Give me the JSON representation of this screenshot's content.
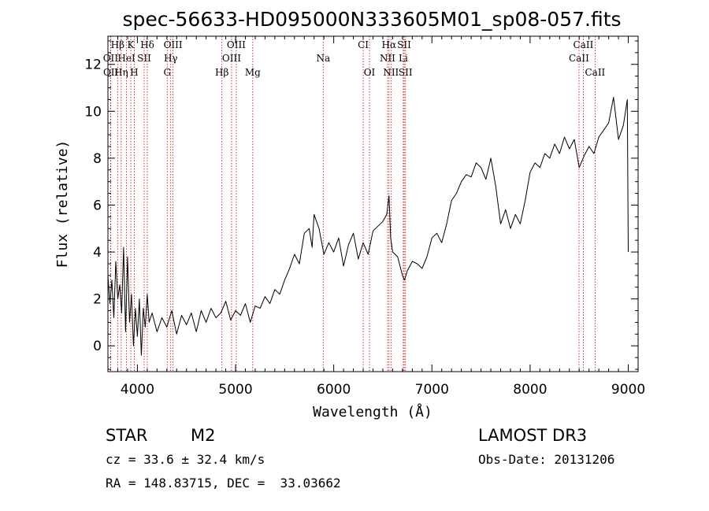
{
  "chart_data": {
    "type": "line",
    "title": "spec-56633-HD095000N333605M01_sp08-057.fits",
    "xlabel": "Wavelength (Å)",
    "ylabel": "Flux (relative)",
    "xlim": [
      3700,
      9100
    ],
    "ylim": [
      -1.1,
      13.2
    ],
    "x_ticks": [
      4000,
      5000,
      6000,
      7000,
      8000,
      9000
    ],
    "y_ticks": [
      0,
      2,
      4,
      6,
      8,
      10,
      12
    ],
    "series": [
      {
        "name": "flux",
        "x": [
          3700,
          3720,
          3740,
          3760,
          3780,
          3800,
          3820,
          3840,
          3860,
          3880,
          3900,
          3920,
          3940,
          3960,
          3980,
          4000,
          4020,
          4040,
          4060,
          4080,
          4100,
          4120,
          4150,
          4200,
          4250,
          4300,
          4350,
          4400,
          4450,
          4500,
          4550,
          4600,
          4650,
          4700,
          4750,
          4800,
          4850,
          4900,
          4950,
          5000,
          5050,
          5100,
          5150,
          5200,
          5250,
          5300,
          5350,
          5400,
          5450,
          5500,
          5550,
          5600,
          5650,
          5700,
          5750,
          5780,
          5800,
          5850,
          5900,
          5950,
          6000,
          6050,
          6100,
          6150,
          6200,
          6250,
          6300,
          6350,
          6400,
          6450,
          6500,
          6540,
          6563,
          6580,
          6600,
          6650,
          6700,
          6720,
          6750,
          6800,
          6850,
          6900,
          6950,
          7000,
          7050,
          7100,
          7150,
          7200,
          7250,
          7300,
          7350,
          7400,
          7450,
          7500,
          7550,
          7600,
          7650,
          7700,
          7750,
          7800,
          7850,
          7900,
          7950,
          8000,
          8050,
          8100,
          8150,
          8200,
          8250,
          8300,
          8350,
          8400,
          8450,
          8500,
          8550,
          8600,
          8650,
          8700,
          8750,
          8800,
          8850,
          8900,
          8950,
          8990,
          9000
        ],
        "y": [
          3.0,
          1.8,
          2.8,
          1.2,
          3.6,
          2.0,
          2.6,
          1.4,
          4.2,
          0.6,
          3.8,
          1.0,
          2.2,
          0.0,
          1.6,
          0.4,
          2.0,
          -0.4,
          1.6,
          0.8,
          2.2,
          1.0,
          1.4,
          0.6,
          1.2,
          0.8,
          1.5,
          0.5,
          1.3,
          0.9,
          1.4,
          0.6,
          1.5,
          1.0,
          1.6,
          1.2,
          1.4,
          1.9,
          1.1,
          1.5,
          1.3,
          1.8,
          1.0,
          1.7,
          1.6,
          2.1,
          1.8,
          2.4,
          2.2,
          2.8,
          3.3,
          3.9,
          3.5,
          4.8,
          5.0,
          4.2,
          5.6,
          5.0,
          3.9,
          4.4,
          4.0,
          4.6,
          3.4,
          4.3,
          4.8,
          3.7,
          4.4,
          3.9,
          4.9,
          5.1,
          5.3,
          5.6,
          6.4,
          4.6,
          4.0,
          3.8,
          3.0,
          2.8,
          3.2,
          3.6,
          3.5,
          3.3,
          3.8,
          4.6,
          4.8,
          4.4,
          5.2,
          6.2,
          6.5,
          7.0,
          7.3,
          7.2,
          7.8,
          7.6,
          7.1,
          8.0,
          6.8,
          5.2,
          5.8,
          5.0,
          5.6,
          5.2,
          6.2,
          7.4,
          7.8,
          7.6,
          8.2,
          8.0,
          8.6,
          8.2,
          8.9,
          8.4,
          8.8,
          7.6,
          8.1,
          8.5,
          8.2,
          8.9,
          9.2,
          9.5,
          10.6,
          8.8,
          9.4,
          10.5,
          4.0
        ]
      }
    ],
    "annotations": [
      {
        "text": "Hβ",
        "x": 3799,
        "row": 1
      },
      {
        "text": "K",
        "x": 3933,
        "row": 1
      },
      {
        "text": "Hδ",
        "x": 4101,
        "row": 1
      },
      {
        "text": "OIII",
        "x": 4363,
        "row": 1
      },
      {
        "text": "OIII",
        "x": 5007,
        "row": 1
      },
      {
        "text": "CI",
        "x": 6300,
        "row": 1
      },
      {
        "text": "Hα",
        "x": 6563,
        "row": 1
      },
      {
        "text": "SII",
        "x": 6717,
        "row": 1
      },
      {
        "text": "CaII",
        "x": 8542,
        "row": 1
      },
      {
        "text": "OII",
        "x": 3727,
        "row": 2
      },
      {
        "text": "HeI",
        "x": 3889,
        "row": 2
      },
      {
        "text": "SII",
        "x": 4069,
        "row": 2
      },
      {
        "text": "Hγ",
        "x": 4340,
        "row": 2
      },
      {
        "text": "OIII",
        "x": 4959,
        "row": 2
      },
      {
        "text": "Na",
        "x": 5893,
        "row": 2
      },
      {
        "text": "NII",
        "x": 6548,
        "row": 2
      },
      {
        "text": "Li",
        "x": 6708,
        "row": 2
      },
      {
        "text": "CaII",
        "x": 8498,
        "row": 2
      },
      {
        "text": "OII",
        "x": 3729,
        "row": 3
      },
      {
        "text": "Hη",
        "x": 3835,
        "row": 3
      },
      {
        "text": "H",
        "x": 3968,
        "row": 3
      },
      {
        "text": "G",
        "x": 4304,
        "row": 3
      },
      {
        "text": "Hβ",
        "x": 4861,
        "row": 3
      },
      {
        "text": "Mg",
        "x": 5175,
        "row": 3
      },
      {
        "text": "OI",
        "x": 6364,
        "row": 3
      },
      {
        "text": "NII",
        "x": 6583,
        "row": 3
      },
      {
        "text": "SII",
        "x": 6731,
        "row": 3
      },
      {
        "text": "CaII",
        "x": 8662,
        "row": 3
      }
    ],
    "line_marker_x": [
      3727,
      3729,
      3799,
      3835,
      3889,
      3933,
      3968,
      4069,
      4101,
      4304,
      4340,
      4363,
      4861,
      4959,
      5007,
      5175,
      5893,
      6300,
      6364,
      6548,
      6563,
      6583,
      6708,
      6717,
      6731,
      8498,
      8542,
      8662
    ]
  },
  "info": {
    "object_class": "STAR",
    "subclass": "M2",
    "survey": "LAMOST DR3",
    "redshift": "cz = 33.6 ± 32.4 km/s",
    "obs_date": "Obs-Date: 20131206",
    "coords": "RA = 148.83715, DEC =  33.03662"
  },
  "colors": {
    "axis": "#000000",
    "spectrum": "#000000",
    "marker": "#cc0000"
  }
}
